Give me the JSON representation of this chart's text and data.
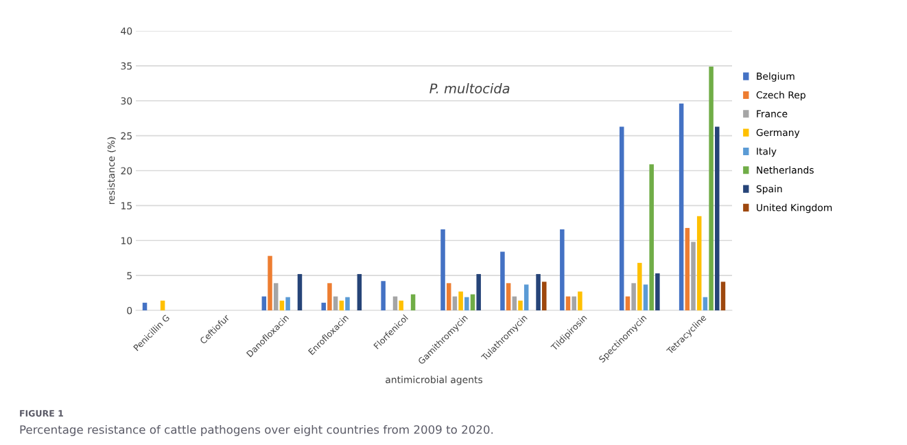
{
  "chart_data": {
    "type": "bar",
    "title": "P. multocida",
    "xlabel": "antimicrobial agents",
    "ylabel": "resistance (%)",
    "categories": [
      "Penicillin G",
      "Ceftiofur",
      "Danofloxacin",
      "Enrofloxacin",
      "Florfenicol",
      "Gamithromycin",
      "Tulathromycin",
      "Tildipirosin",
      "Spectinomycin",
      "Tetracycline"
    ],
    "series": [
      {
        "name": "Belgium",
        "color": "#4472c4",
        "values": [
          1.1,
          null,
          2.0,
          1.1,
          4.2,
          11.6,
          8.4,
          11.6,
          26.3,
          29.6
        ]
      },
      {
        "name": "Czech Rep",
        "color": "#ed7d31",
        "values": [
          null,
          null,
          7.8,
          3.9,
          null,
          3.9,
          3.9,
          2.0,
          2.0,
          11.8
        ]
      },
      {
        "name": "France",
        "color": "#a5a5a5",
        "values": [
          null,
          null,
          3.9,
          2.0,
          2.0,
          2.0,
          2.0,
          2.0,
          3.9,
          9.8
        ]
      },
      {
        "name": "Germany",
        "color": "#ffc000",
        "values": [
          1.4,
          null,
          1.4,
          1.4,
          1.4,
          2.7,
          1.4,
          2.7,
          6.8,
          13.5
        ]
      },
      {
        "name": "Italy",
        "color": "#5b9bd5",
        "values": [
          null,
          null,
          1.9,
          1.9,
          null,
          1.9,
          3.7,
          null,
          3.7,
          1.9
        ]
      },
      {
        "name": "Netherlands",
        "color": "#70ad47",
        "values": [
          null,
          null,
          null,
          null,
          2.3,
          2.3,
          null,
          null,
          20.9,
          34.9
        ]
      },
      {
        "name": "Spain",
        "color": "#264478",
        "values": [
          null,
          null,
          5.2,
          5.2,
          null,
          5.2,
          5.2,
          null,
          5.3,
          26.3
        ]
      },
      {
        "name": "United Kingdom",
        "color": "#9e480e",
        "values": [
          null,
          null,
          null,
          null,
          null,
          null,
          4.1,
          null,
          null,
          4.1
        ]
      }
    ],
    "ylim": [
      0,
      40
    ],
    "yticks": [
      0,
      5,
      10,
      15,
      20,
      25,
      30,
      35,
      40
    ],
    "grid": "y",
    "legend": "right",
    "annotations": [
      "FIGURE 1",
      "Percentage resistance of cattle pathogens over eight countries from 2009 to 2020."
    ]
  }
}
